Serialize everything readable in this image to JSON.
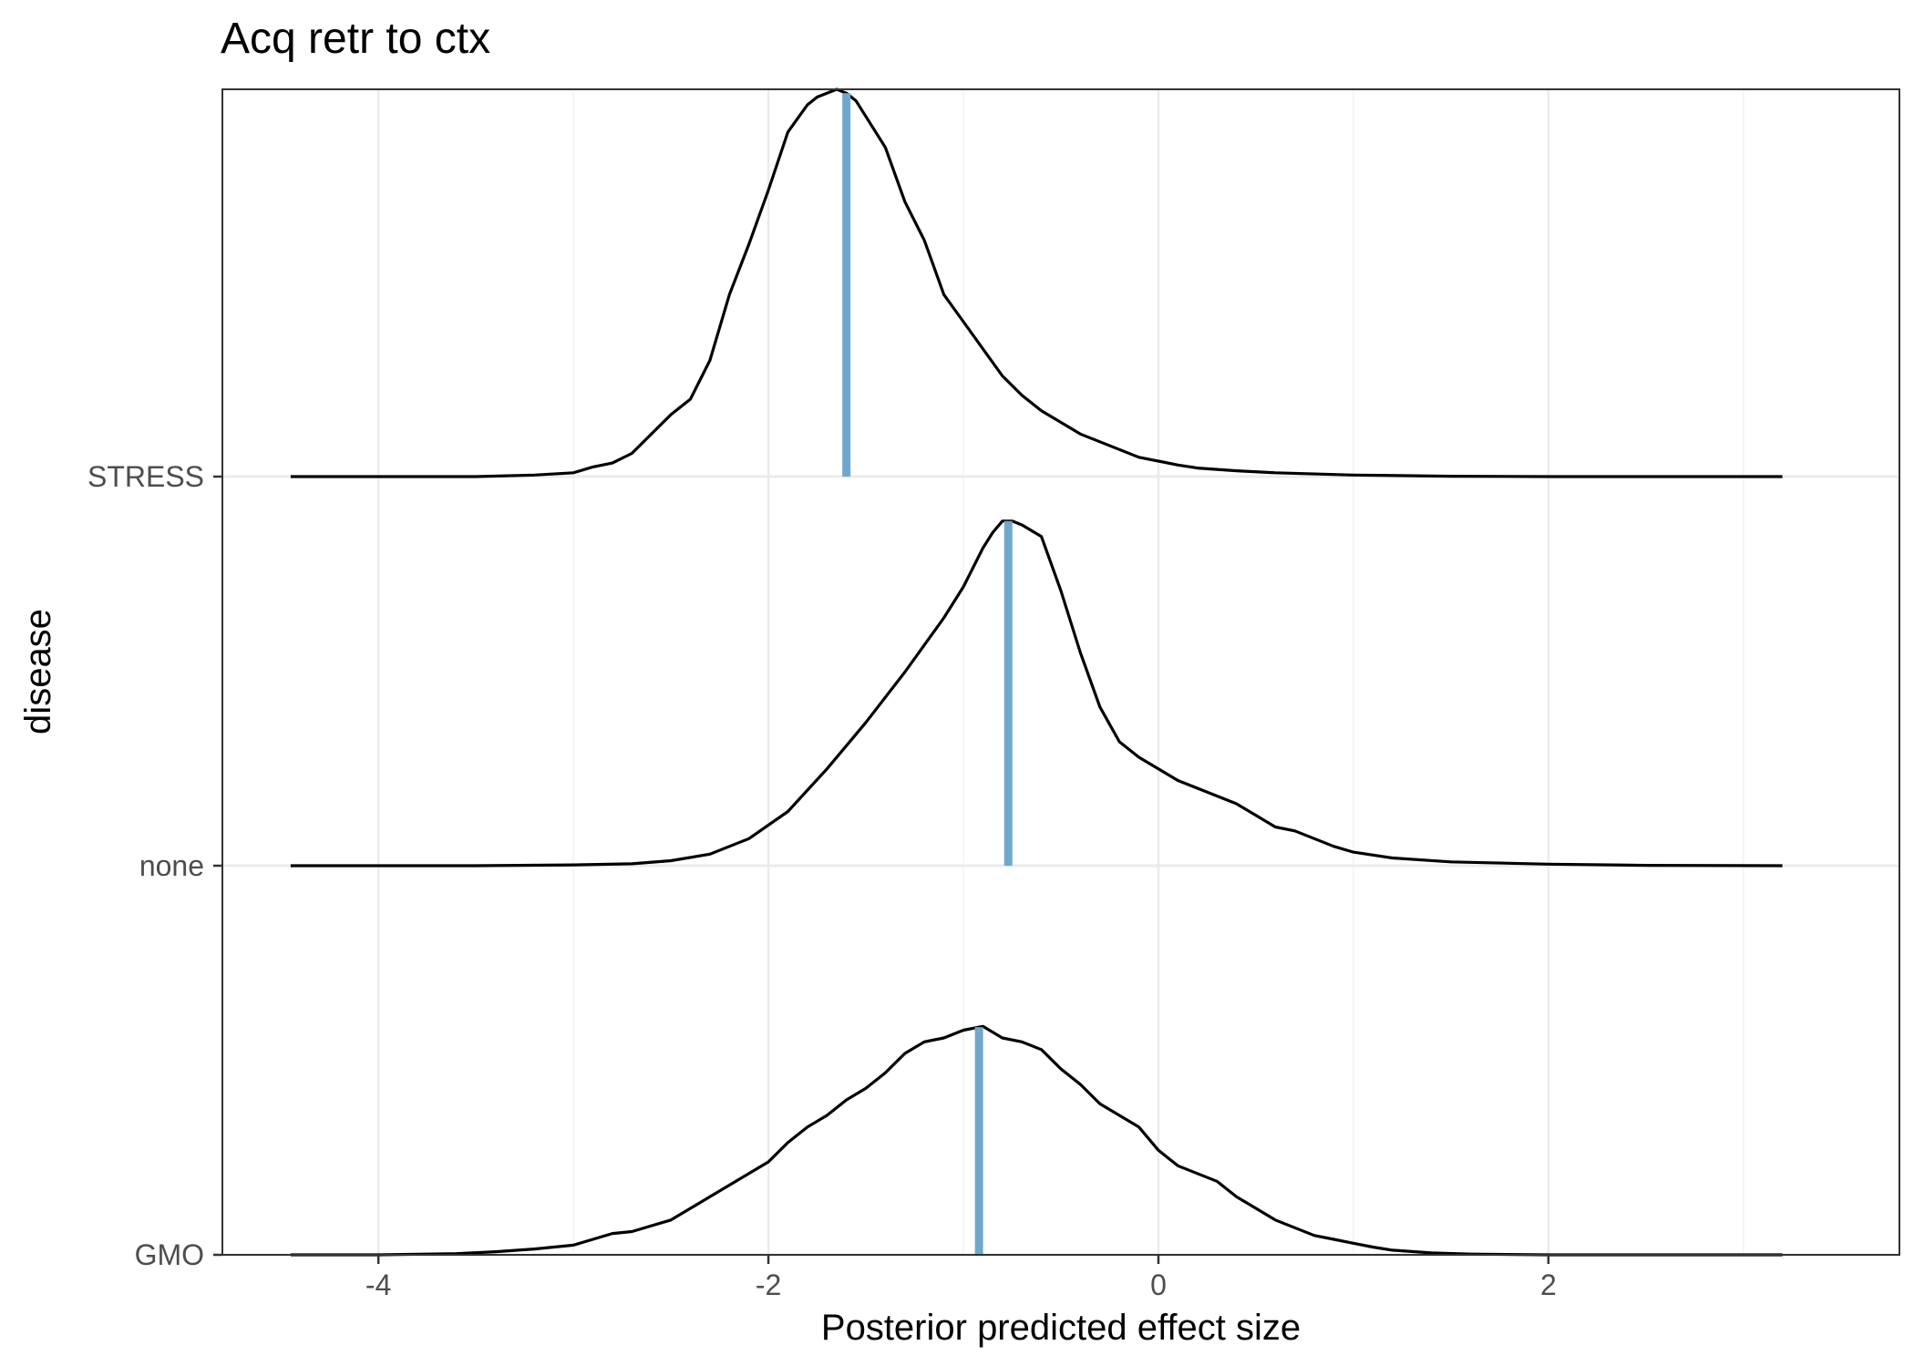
{
  "chart_data": {
    "type": "ridgeline-density",
    "title": "Acq retr to ctx",
    "xlabel": "Posterior predicted effect size",
    "ylabel": "disease",
    "xlim": [
      -4.8,
      3.8
    ],
    "x_ticks": [
      -4,
      -2,
      0,
      2
    ],
    "x_tick_labels": [
      "-4",
      "-2",
      "0",
      "2"
    ],
    "categories": [
      "GMO",
      "none",
      "STRESS"
    ],
    "grid": true,
    "colors": {
      "density_line": "#000000",
      "median_line": "#6fa8cc",
      "grid": "#ebebeb",
      "panel_border": "#333333"
    },
    "series": [
      {
        "category": "GMO",
        "median": -0.92,
        "x": [
          -4.45,
          -4.0,
          -3.6,
          -3.4,
          -3.2,
          -3.0,
          -2.9,
          -2.8,
          -2.7,
          -2.6,
          -2.5,
          -2.4,
          -2.3,
          -2.2,
          -2.1,
          -2.0,
          -1.9,
          -1.8,
          -1.7,
          -1.6,
          -1.5,
          -1.4,
          -1.3,
          -1.2,
          -1.1,
          -1.0,
          -0.9,
          -0.8,
          -0.7,
          -0.6,
          -0.5,
          -0.4,
          -0.3,
          -0.2,
          -0.1,
          0.0,
          0.1,
          0.2,
          0.3,
          0.4,
          0.5,
          0.6,
          0.7,
          0.8,
          0.9,
          1.0,
          1.1,
          1.2,
          1.4,
          1.6,
          2.0,
          2.5,
          3.2
        ],
        "y": [
          0.0,
          0.0,
          0.003,
          0.008,
          0.015,
          0.025,
          0.04,
          0.055,
          0.06,
          0.075,
          0.09,
          0.12,
          0.15,
          0.18,
          0.21,
          0.24,
          0.29,
          0.33,
          0.36,
          0.4,
          0.43,
          0.47,
          0.52,
          0.55,
          0.56,
          0.58,
          0.59,
          0.56,
          0.55,
          0.53,
          0.48,
          0.44,
          0.39,
          0.36,
          0.33,
          0.27,
          0.23,
          0.21,
          0.19,
          0.15,
          0.12,
          0.09,
          0.07,
          0.05,
          0.04,
          0.03,
          0.02,
          0.012,
          0.005,
          0.002,
          0.0,
          0.0,
          0.0
        ]
      },
      {
        "category": "none",
        "median": -0.77,
        "x": [
          -4.45,
          -3.5,
          -3.0,
          -2.7,
          -2.5,
          -2.3,
          -2.1,
          -1.9,
          -1.7,
          -1.5,
          -1.3,
          -1.1,
          -1.0,
          -0.9,
          -0.85,
          -0.8,
          -0.75,
          -0.7,
          -0.6,
          -0.5,
          -0.4,
          -0.3,
          -0.2,
          -0.1,
          0.0,
          0.1,
          0.2,
          0.3,
          0.4,
          0.5,
          0.6,
          0.7,
          0.8,
          0.9,
          1.0,
          1.2,
          1.5,
          2.0,
          2.5,
          3.2
        ],
        "y": [
          0.0,
          0.0,
          0.002,
          0.005,
          0.013,
          0.03,
          0.07,
          0.14,
          0.25,
          0.37,
          0.5,
          0.64,
          0.72,
          0.82,
          0.86,
          0.89,
          0.89,
          0.88,
          0.85,
          0.71,
          0.55,
          0.41,
          0.32,
          0.28,
          0.25,
          0.22,
          0.2,
          0.18,
          0.16,
          0.13,
          0.1,
          0.09,
          0.07,
          0.05,
          0.035,
          0.02,
          0.01,
          0.004,
          0.001,
          0.0
        ]
      },
      {
        "category": "STRESS",
        "median": -1.6,
        "x": [
          -4.45,
          -3.5,
          -3.2,
          -3.0,
          -2.9,
          -2.8,
          -2.7,
          -2.6,
          -2.5,
          -2.4,
          -2.3,
          -2.2,
          -2.1,
          -2.0,
          -1.9,
          -1.8,
          -1.75,
          -1.7,
          -1.65,
          -1.6,
          -1.55,
          -1.5,
          -1.4,
          -1.3,
          -1.2,
          -1.1,
          -1.0,
          -0.9,
          -0.8,
          -0.7,
          -0.6,
          -0.5,
          -0.4,
          -0.3,
          -0.2,
          -0.1,
          0.0,
          0.1,
          0.2,
          0.4,
          0.6,
          1.0,
          1.5,
          2.0,
          3.2
        ],
        "y": [
          0.0,
          0.0,
          0.004,
          0.01,
          0.025,
          0.035,
          0.06,
          0.11,
          0.16,
          0.2,
          0.3,
          0.47,
          0.6,
          0.74,
          0.89,
          0.96,
          0.98,
          0.99,
          1.0,
          0.99,
          0.97,
          0.93,
          0.85,
          0.71,
          0.61,
          0.47,
          0.4,
          0.33,
          0.26,
          0.21,
          0.17,
          0.14,
          0.11,
          0.09,
          0.07,
          0.05,
          0.04,
          0.03,
          0.022,
          0.015,
          0.01,
          0.004,
          0.001,
          0.0,
          0.0
        ]
      }
    ]
  }
}
